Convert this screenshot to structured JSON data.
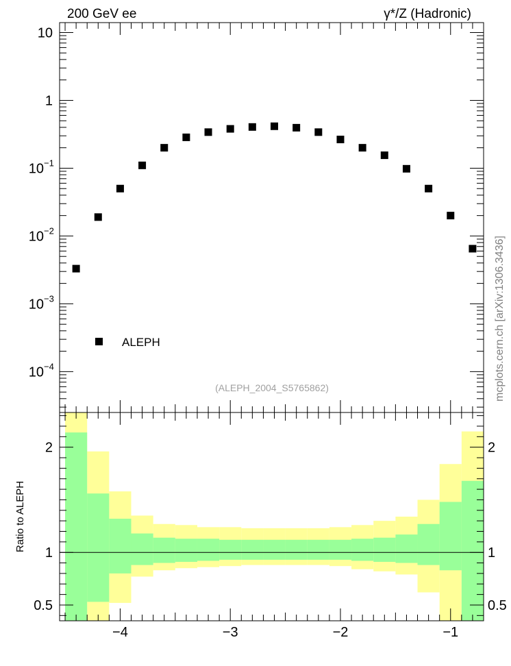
{
  "header": {
    "left": "200 GeV ee",
    "right": "γ*/Z (Hadronic)"
  },
  "side_text": "mcplots.cern.ch [arXiv:1306.3436]",
  "reference": "(ALEPH_2004_S5765862)",
  "colors": {
    "band_inner": "#99ff99",
    "band_outer": "#ffff99",
    "marker": "#000000",
    "axis": "#000000"
  },
  "chart_data": [
    {
      "type": "scatter",
      "yscale": "log",
      "xlim": [
        -4.55,
        -0.7
      ],
      "ylim": [
        2.5e-05,
        14
      ],
      "yticks": [
        {
          "value": 10,
          "base": "10",
          "exp": ""
        },
        {
          "value": 1,
          "base": "1",
          "exp": ""
        },
        {
          "value": 0.1,
          "base": "10",
          "exp": "−1"
        },
        {
          "value": 0.01,
          "base": "10",
          "exp": "−2"
        },
        {
          "value": 0.001,
          "base": "10",
          "exp": "−3"
        },
        {
          "value": 0.0001,
          "base": "10",
          "exp": "−4"
        }
      ],
      "legend": {
        "label": "ALEPH",
        "placement": "bottom-left"
      },
      "series": [
        {
          "name": "ALEPH",
          "x": [
            -4.4,
            -4.2,
            -4.0,
            -3.8,
            -3.6,
            -3.4,
            -3.2,
            -3.0,
            -2.8,
            -2.6,
            -2.4,
            -2.2,
            -2.0,
            -1.8,
            -1.6,
            -1.4,
            -1.2,
            -1.0,
            -0.8
          ],
          "y": [
            0.0033,
            0.019,
            0.05,
            0.11,
            0.2,
            0.285,
            0.34,
            0.38,
            0.405,
            0.415,
            0.395,
            0.34,
            0.265,
            0.2,
            0.155,
            0.098,
            0.05,
            0.02,
            0.0065
          ]
        }
      ]
    },
    {
      "type": "area",
      "yscale": "linear",
      "ylabel": "Ratio to ALEPH",
      "xlim": [
        -4.55,
        -0.7
      ],
      "ylim": [
        0.35,
        2.33
      ],
      "xticks": [
        {
          "value": -4,
          "label": "−4"
        },
        {
          "value": -3,
          "label": "−3"
        },
        {
          "value": -2,
          "label": "−2"
        },
        {
          "value": -1,
          "label": "−1"
        }
      ],
      "yticks": [
        {
          "value": 2,
          "label": "2"
        },
        {
          "value": 1,
          "label": "1"
        },
        {
          "value": 0.5,
          "label": "0.5"
        }
      ],
      "bins": [
        -4.5,
        -4.3,
        -4.1,
        -3.9,
        -3.7,
        -3.5,
        -3.3,
        -3.1,
        -2.9,
        -2.7,
        -2.5,
        -2.3,
        -2.1,
        -1.9,
        -1.7,
        -1.5,
        -1.3,
        -1.1,
        -0.9,
        -0.7
      ],
      "inner_band": {
        "lo": [
          0.3,
          0.53,
          0.8,
          0.88,
          0.9,
          0.91,
          0.92,
          0.93,
          0.93,
          0.93,
          0.93,
          0.93,
          0.93,
          0.92,
          0.91,
          0.9,
          0.88,
          0.83,
          0.3
        ],
        "hi": [
          2.14,
          1.56,
          1.32,
          1.18,
          1.14,
          1.13,
          1.13,
          1.12,
          1.12,
          1.12,
          1.12,
          1.12,
          1.12,
          1.13,
          1.14,
          1.17,
          1.27,
          1.48,
          1.68
        ]
      },
      "outer_band": {
        "lo": [
          0.3,
          0.3,
          0.52,
          0.77,
          0.83,
          0.85,
          0.86,
          0.87,
          0.88,
          0.88,
          0.88,
          0.88,
          0.87,
          0.84,
          0.82,
          0.79,
          0.62,
          0.3,
          0.3
        ],
        "hi": [
          2.33,
          1.96,
          1.58,
          1.35,
          1.27,
          1.26,
          1.24,
          1.24,
          1.23,
          1.23,
          1.23,
          1.23,
          1.24,
          1.26,
          1.3,
          1.34,
          1.5,
          1.84,
          2.15
        ]
      },
      "reference_line": 1
    }
  ]
}
